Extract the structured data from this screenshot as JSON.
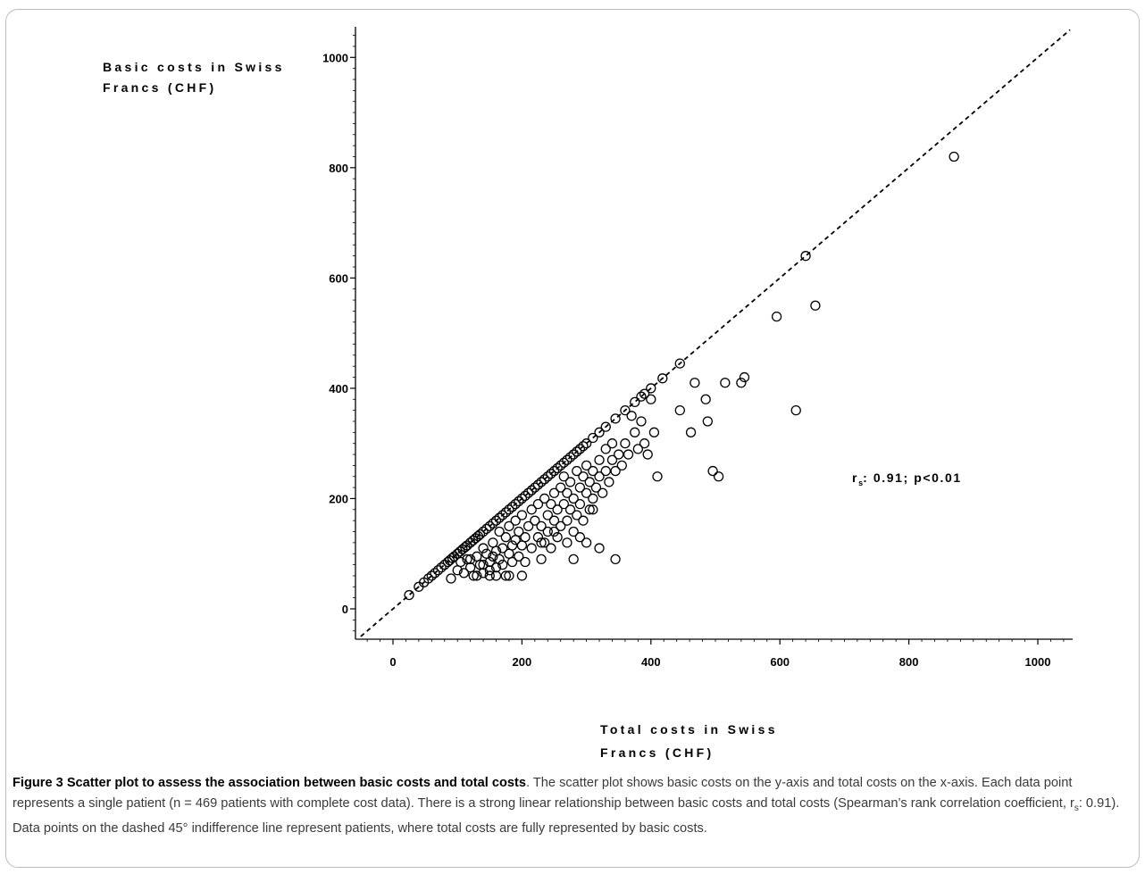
{
  "chart_data": {
    "type": "scatter",
    "xlabel": "Total costs in Swiss Francs (CHF)",
    "ylabel": "Basic costs in Swiss Francs (CHF)",
    "xlim": [
      -50,
      1050
    ],
    "ylim": [
      -60,
      1050
    ],
    "xticks": [
      "0",
      "200",
      "400",
      "600",
      "800",
      "1000"
    ],
    "yticks": [
      "0",
      "200",
      "400",
      "600",
      "800",
      "1000"
    ],
    "annotation": {
      "main": "r",
      "sub": "s",
      "rest": ": 0.91; p<0.01"
    },
    "reference_line": {
      "style": "dashed",
      "slope": 1,
      "intercept": 0
    },
    "points": [
      [
        25,
        25
      ],
      [
        40,
        40
      ],
      [
        48,
        48
      ],
      [
        55,
        55
      ],
      [
        60,
        60
      ],
      [
        65,
        65
      ],
      [
        70,
        70
      ],
      [
        75,
        75
      ],
      [
        80,
        80
      ],
      [
        85,
        85
      ],
      [
        88,
        88
      ],
      [
        92,
        92
      ],
      [
        95,
        95
      ],
      [
        100,
        100
      ],
      [
        104,
        104
      ],
      [
        108,
        108
      ],
      [
        112,
        112
      ],
      [
        115,
        115
      ],
      [
        120,
        120
      ],
      [
        124,
        124
      ],
      [
        128,
        128
      ],
      [
        132,
        132
      ],
      [
        135,
        135
      ],
      [
        140,
        140
      ],
      [
        145,
        145
      ],
      [
        150,
        150
      ],
      [
        155,
        155
      ],
      [
        160,
        160
      ],
      [
        165,
        165
      ],
      [
        170,
        170
      ],
      [
        175,
        175
      ],
      [
        180,
        180
      ],
      [
        185,
        185
      ],
      [
        190,
        190
      ],
      [
        195,
        195
      ],
      [
        200,
        200
      ],
      [
        205,
        205
      ],
      [
        210,
        210
      ],
      [
        215,
        215
      ],
      [
        220,
        220
      ],
      [
        225,
        225
      ],
      [
        230,
        230
      ],
      [
        235,
        235
      ],
      [
        240,
        240
      ],
      [
        245,
        245
      ],
      [
        250,
        250
      ],
      [
        255,
        255
      ],
      [
        260,
        260
      ],
      [
        265,
        265
      ],
      [
        270,
        270
      ],
      [
        275,
        275
      ],
      [
        280,
        280
      ],
      [
        285,
        285
      ],
      [
        290,
        290
      ],
      [
        295,
        295
      ],
      [
        300,
        300
      ],
      [
        310,
        310
      ],
      [
        320,
        320
      ],
      [
        330,
        330
      ],
      [
        345,
        345
      ],
      [
        360,
        360
      ],
      [
        375,
        375
      ],
      [
        385,
        385
      ],
      [
        390,
        390
      ],
      [
        400,
        400
      ],
      [
        418,
        418
      ],
      [
        445,
        445
      ],
      [
        640,
        640
      ],
      [
        870,
        820
      ],
      [
        90,
        55
      ],
      [
        100,
        70
      ],
      [
        105,
        85
      ],
      [
        110,
        65
      ],
      [
        115,
        90
      ],
      [
        120,
        75
      ],
      [
        125,
        60
      ],
      [
        130,
        95
      ],
      [
        135,
        80
      ],
      [
        140,
        110
      ],
      [
        140,
        65
      ],
      [
        145,
        100
      ],
      [
        150,
        85
      ],
      [
        150,
        60
      ],
      [
        155,
        120
      ],
      [
        155,
        95
      ],
      [
        160,
        75
      ],
      [
        160,
        105
      ],
      [
        165,
        140
      ],
      [
        165,
        90
      ],
      [
        170,
        110
      ],
      [
        170,
        80
      ],
      [
        175,
        130
      ],
      [
        175,
        60
      ],
      [
        180,
        100
      ],
      [
        180,
        150
      ],
      [
        185,
        115
      ],
      [
        185,
        85
      ],
      [
        190,
        160
      ],
      [
        190,
        125
      ],
      [
        195,
        95
      ],
      [
        195,
        140
      ],
      [
        200,
        170
      ],
      [
        200,
        115
      ],
      [
        205,
        130
      ],
      [
        205,
        85
      ],
      [
        210,
        150
      ],
      [
        215,
        180
      ],
      [
        215,
        110
      ],
      [
        220,
        160
      ],
      [
        225,
        130
      ],
      [
        225,
        190
      ],
      [
        230,
        90
      ],
      [
        230,
        150
      ],
      [
        235,
        200
      ],
      [
        235,
        120
      ],
      [
        240,
        170
      ],
      [
        240,
        140
      ],
      [
        245,
        190
      ],
      [
        245,
        110
      ],
      [
        250,
        160
      ],
      [
        250,
        210
      ],
      [
        255,
        130
      ],
      [
        255,
        180
      ],
      [
        260,
        220
      ],
      [
        260,
        150
      ],
      [
        265,
        190
      ],
      [
        265,
        240
      ],
      [
        270,
        160
      ],
      [
        270,
        210
      ],
      [
        275,
        180
      ],
      [
        275,
        230
      ],
      [
        280,
        140
      ],
      [
        280,
        200
      ],
      [
        285,
        250
      ],
      [
        285,
        170
      ],
      [
        290,
        220
      ],
      [
        290,
        190
      ],
      [
        295,
        240
      ],
      [
        295,
        160
      ],
      [
        300,
        260
      ],
      [
        300,
        210
      ],
      [
        305,
        180
      ],
      [
        305,
        230
      ],
      [
        310,
        250
      ],
      [
        310,
        200
      ],
      [
        315,
        220
      ],
      [
        320,
        270
      ],
      [
        320,
        240
      ],
      [
        325,
        210
      ],
      [
        330,
        290
      ],
      [
        330,
        250
      ],
      [
        335,
        230
      ],
      [
        340,
        300
      ],
      [
        340,
        270
      ],
      [
        345,
        250
      ],
      [
        350,
        280
      ],
      [
        355,
        260
      ],
      [
        360,
        300
      ],
      [
        365,
        280
      ],
      [
        370,
        350
      ],
      [
        375,
        320
      ],
      [
        380,
        290
      ],
      [
        385,
        340
      ],
      [
        390,
        300
      ],
      [
        395,
        280
      ],
      [
        400,
        380
      ],
      [
        405,
        320
      ],
      [
        410,
        240
      ],
      [
        200,
        60
      ],
      [
        280,
        90
      ],
      [
        290,
        130
      ],
      [
        300,
        120
      ],
      [
        320,
        110
      ],
      [
        345,
        90
      ],
      [
        250,
        140
      ],
      [
        270,
        120
      ],
      [
        310,
        180
      ],
      [
        230,
        120
      ],
      [
        180,
        60
      ],
      [
        160,
        60
      ],
      [
        130,
        60
      ],
      [
        150,
        70
      ],
      [
        140,
        80
      ],
      [
        120,
        90
      ],
      [
        445,
        360
      ],
      [
        462,
        320
      ],
      [
        468,
        410
      ],
      [
        485,
        380
      ],
      [
        488,
        340
      ],
      [
        496,
        250
      ],
      [
        505,
        240
      ],
      [
        515,
        410
      ],
      [
        540,
        410
      ],
      [
        545,
        420
      ],
      [
        595,
        530
      ],
      [
        625,
        360
      ],
      [
        655,
        550
      ]
    ]
  },
  "caption": {
    "bold": "Figure 3 Scatter plot to assess the association between basic costs and total costs",
    "text_a": ". The scatter plot shows basic costs on the y-axis and total costs on the x-axis. Each data point represents a single patient (n = 469 patients with complete cost data). There is a strong linear relationship between basic costs and total costs (Spearman’s rank correlation coefficient, r",
    "sub": "s",
    "text_b": ": 0.91). Data points on the dashed 45° indifference line represent patients, where total costs are fully represented by basic costs."
  }
}
